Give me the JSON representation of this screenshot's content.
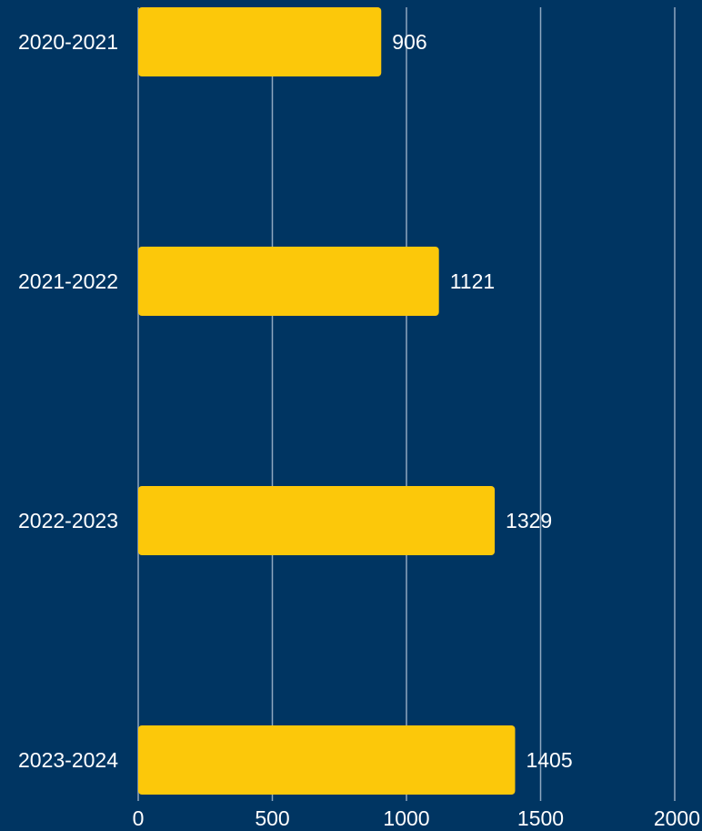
{
  "colors": {
    "background": "#003562",
    "bar": "#FCC80A",
    "gridline": "#8FA7C0",
    "text": "#FFFFFF"
  },
  "chart_data": {
    "type": "bar",
    "orientation": "horizontal",
    "categories": [
      "2020-2021",
      "2021-2022",
      "2022-2023",
      "2023-2024"
    ],
    "values": [
      906,
      1121,
      1329,
      1405
    ],
    "title": "",
    "xlabel": "",
    "ylabel": "",
    "xlim": [
      0,
      2000
    ],
    "xticks": [
      "0",
      "500",
      "1000",
      "1500",
      "2000"
    ],
    "grid": "vertical",
    "legend": "none",
    "data_labels": [
      "906",
      "1121",
      "1329",
      "1405"
    ]
  }
}
